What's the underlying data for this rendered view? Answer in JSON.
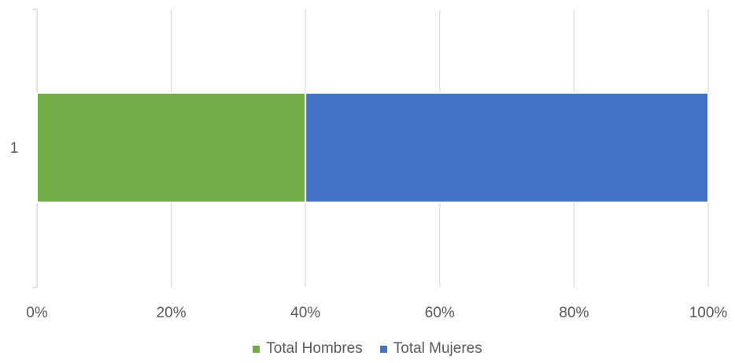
{
  "chart_data": {
    "type": "bar",
    "orientation": "horizontal",
    "stacked": "percent",
    "categories": [
      "1"
    ],
    "series": [
      {
        "name": "Total Hombres",
        "values": [
          40
        ],
        "color": "#70AD47"
      },
      {
        "name": "Total Mujeres",
        "values": [
          60
        ],
        "color": "#4472C4"
      }
    ],
    "xlim": [
      0,
      100
    ],
    "xticks": [
      0,
      20,
      40,
      60,
      80,
      100
    ],
    "xtick_labels": [
      "0%",
      "20%",
      "40%",
      "60%",
      "80%",
      "100%"
    ],
    "grid": "vertical",
    "legend": "bottom",
    "title": "",
    "xlabel": "",
    "ylabel": ""
  }
}
